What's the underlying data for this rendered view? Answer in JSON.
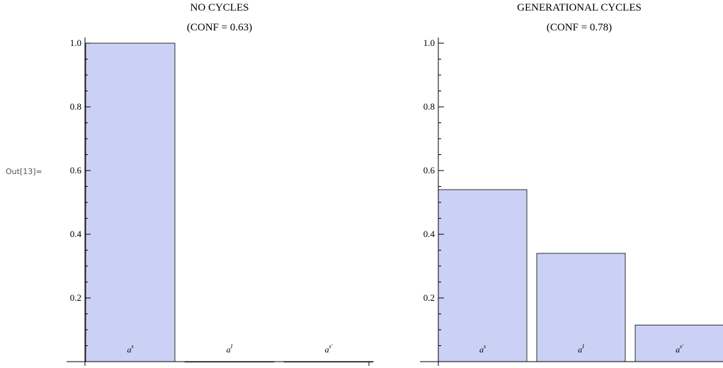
{
  "cell_label": "Out[13]=",
  "chart_data": [
    {
      "type": "bar",
      "title": "NO CYCLES",
      "subtitle": "(CONF = 0.63)",
      "categories": [
        {
          "base": "a",
          "sup": "s"
        },
        {
          "base": "a",
          "sup": "I"
        },
        {
          "base": "a",
          "sup": "s'"
        }
      ],
      "values": [
        1.0,
        0.0,
        0.0
      ],
      "yticks": [
        "0.2",
        "0.4",
        "0.6",
        "0.8",
        "1.0"
      ],
      "ylim": [
        0,
        1.0
      ],
      "grid": false,
      "color": "#cbd1f4"
    },
    {
      "type": "bar",
      "title": "GENERATIONAL CYCLES",
      "subtitle": "(CONF = 0.78)",
      "categories": [
        {
          "base": "a",
          "sup": "s"
        },
        {
          "base": "a",
          "sup": "I"
        },
        {
          "base": "a",
          "sup": "s'"
        }
      ],
      "values": [
        0.54,
        0.34,
        0.115
      ],
      "yticks": [
        "0.2",
        "0.4",
        "0.6",
        "0.8",
        "1.0"
      ],
      "ylim": [
        0,
        1.0
      ],
      "grid": false,
      "color": "#cbd1f4"
    }
  ]
}
